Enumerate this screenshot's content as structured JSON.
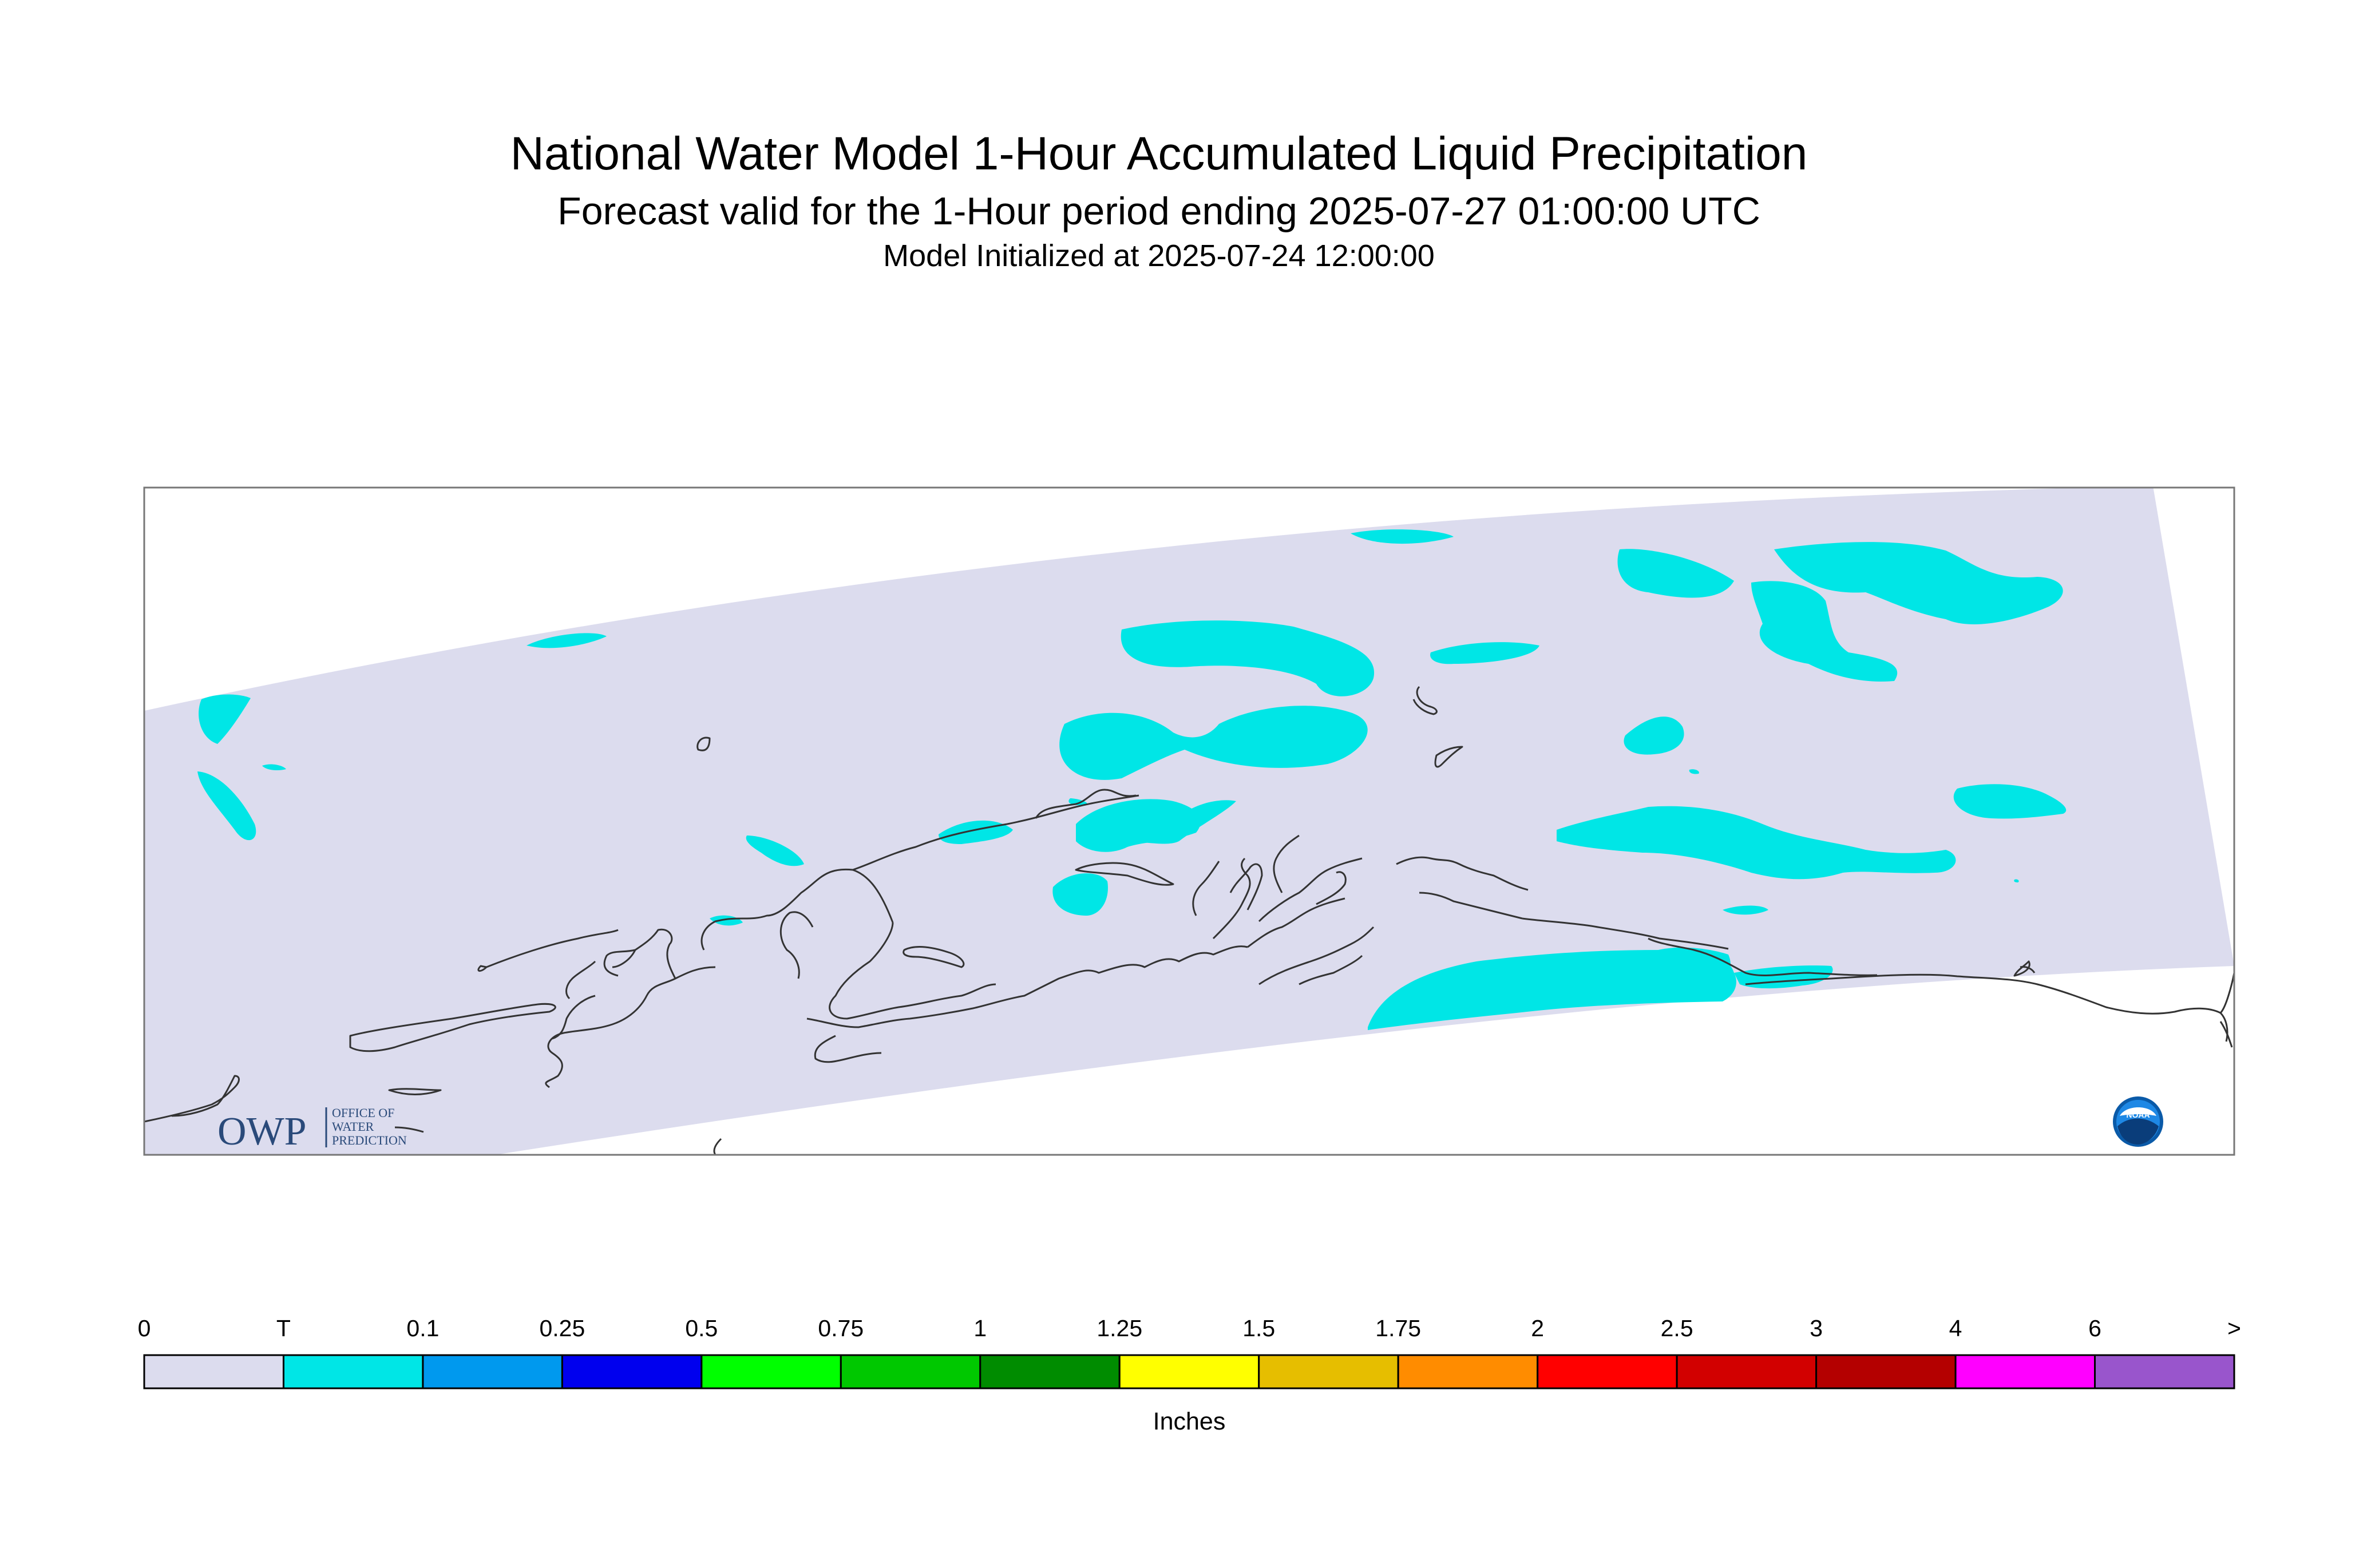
{
  "title": "National Water Model 1-Hour Accumulated Liquid Precipitation",
  "subtitle": "Forecast valid for the 1-Hour period ending 2025-07-27 01:00:00 UTC",
  "init_line": "Model Initialized at 2025-07-24 12:00:00",
  "logos": {
    "owp": {
      "wordmark": "OWP",
      "text_lines": [
        "OFFICE OF",
        "WATER",
        "PREDICTION"
      ]
    },
    "noaa": {
      "text": "NOAA"
    }
  },
  "colors": {
    "domain_fill": "#dcdcee",
    "trace": "#00e6e6",
    "coastline": "#333333"
  },
  "legend": {
    "units": "Inches",
    "labels": [
      "0",
      "T",
      "0.1",
      "0.25",
      "0.5",
      "0.75",
      "1",
      "1.25",
      "1.5",
      "1.75",
      "2",
      "2.5",
      "3",
      "4",
      "6",
      ">"
    ],
    "colors": [
      "#dcdcee",
      "#00e6e6",
      "#0099ee",
      "#0000ee",
      "#00ff00",
      "#00c800",
      "#008c00",
      "#ffff00",
      "#e6be00",
      "#ff8c00",
      "#ff0000",
      "#d20000",
      "#b40000",
      "#ff00ff",
      "#9955cc"
    ]
  }
}
